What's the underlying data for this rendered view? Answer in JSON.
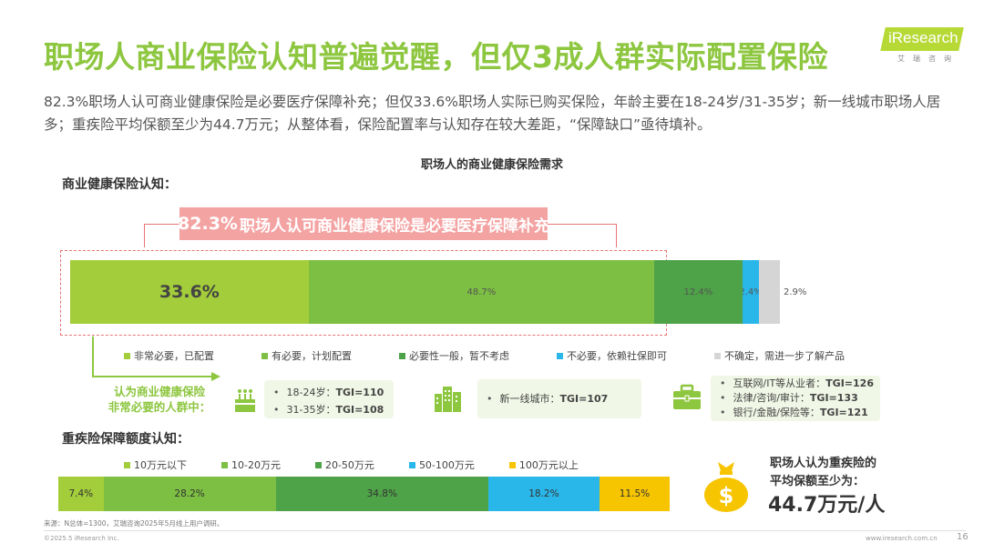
{
  "title": "职场人商业保险认知普遍觉醒，但仅3成人群实际配置保险",
  "logo": {
    "text": "iResearch",
    "sub": "艾瑞咨询"
  },
  "summary": "82.3%职场人认可商业健康保险是必要医疗保障补充；但仅33.6%职场人实际已购买保险，年龄主要在18-24岁/31-35岁；新一线城市职场人居多；重疾险平均保额至少为44.7万元；从整体看，保险配置率与认知存在较大差距，“保障缺口”亟待填补。",
  "chart_title": "职场人的商业健康保险需求",
  "section1_title": "商业健康保险认知：",
  "callout": {
    "pct": "82.3%",
    "text": "职场人认可商业健康保险是必要医疗保障补充"
  },
  "group_label_line1": "认为商业健康保险",
  "group_label_line2": "非常必要的人群中：",
  "age_box": {
    "items": [
      {
        "label": "18-24岁：",
        "tgi": "TGI=110"
      },
      {
        "label": "31-35岁：",
        "tgi": "TGI=108"
      }
    ]
  },
  "city_box": {
    "items": [
      {
        "label": "新一线城市：",
        "tgi": "TGI=107"
      }
    ]
  },
  "job_box": {
    "items": [
      {
        "label": "互联网/IT等从业者：",
        "tgi": "TGI=126"
      },
      {
        "label": "法律/咨询/审计：",
        "tgi": "TGI=133"
      },
      {
        "label": "银行/金融/保险等：",
        "tgi": "TGI=121"
      }
    ]
  },
  "section2_title": "重疾险保障额度认知：",
  "money": {
    "line1": "职场人认为重疾险的",
    "line2": "平均保额至少为：",
    "amount": "44.7万元/人"
  },
  "footer": {
    "note": "来源：N总体=1300，艾瑞咨询2025年5月线上用户调研。",
    "copyright": "©2025.5 iResearch Inc.",
    "url": "www.iresearch.com.cn",
    "page": "16"
  },
  "chart_data": [
    {
      "type": "bar",
      "orientation": "horizontal-stacked",
      "categories": [
        "非常必要，已配置",
        "有必要，计划配置",
        "必要性一般，暂不考虑",
        "不必要，依赖社保即可",
        "不确定，需进一步了解产品"
      ],
      "values": [
        33.6,
        48.7,
        12.4,
        2.4,
        2.9
      ],
      "labels": [
        "33.6%",
        "48.7%",
        "12.4%",
        "2.4%",
        "2.9%"
      ],
      "colors": [
        "#a3cd3a",
        "#7cbf42",
        "#4ea247",
        "#29b7ea",
        "#d5d5d5"
      ]
    },
    {
      "type": "bar",
      "orientation": "horizontal-stacked",
      "categories": [
        "10万元以下",
        "10-20万元",
        "20-50万元",
        "50-100万元",
        "100万元以上"
      ],
      "values": [
        7.4,
        28.2,
        34.8,
        18.2,
        11.5
      ],
      "labels": [
        "7.4%",
        "28.2%",
        "34.8%",
        "18.2%",
        "11.5%"
      ],
      "colors": [
        "#a3cd3a",
        "#7cbf42",
        "#4ea247",
        "#29b7ea",
        "#f7c400"
      ]
    }
  ]
}
